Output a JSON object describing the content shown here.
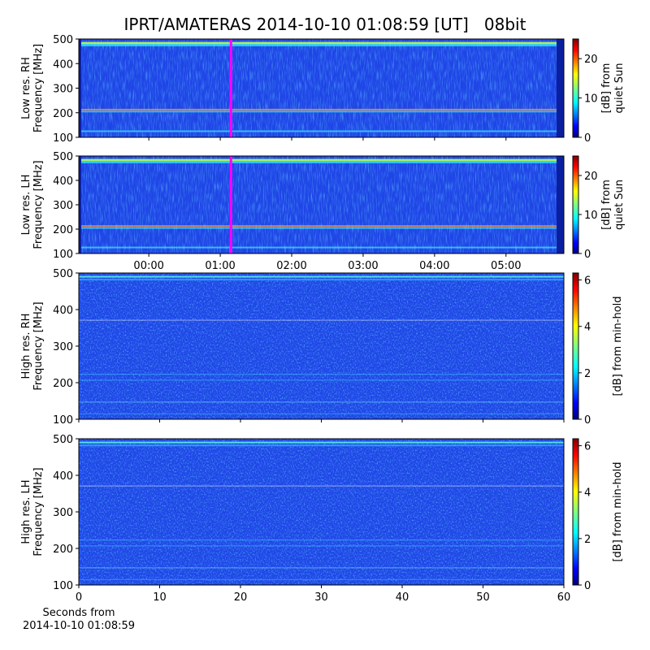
{
  "title": "IPRT/AMATERAS 2014-10-10 01:08:59 [UT]   08bit",
  "chart_data": [
    {
      "type": "heatmap",
      "ylabel": [
        "Low res. RH",
        "Frequency [MHz]"
      ],
      "ylim": [
        100,
        500
      ],
      "yticks": [
        100,
        200,
        300,
        400,
        500
      ],
      "xlim": [
        -0.98,
        5.81
      ],
      "xticks": [
        0,
        1,
        2,
        3,
        4,
        5
      ],
      "show_xticklabels": false,
      "marker_x": 1.15,
      "marker_color": "#ff00ff",
      "colorbar": {
        "label": [
          "[dB] from",
          "quiet Sun"
        ],
        "lim": [
          0,
          25
        ],
        "ticks": [
          0,
          10,
          20
        ]
      }
    },
    {
      "type": "heatmap",
      "ylabel": [
        "Low res. LH",
        "Frequency [MHz]"
      ],
      "ylim": [
        100,
        500
      ],
      "yticks": [
        100,
        200,
        300,
        400,
        500
      ],
      "xlim": [
        -0.98,
        5.81
      ],
      "xticks": [
        {
          "value": 0,
          "label": "00:00"
        },
        {
          "value": 1,
          "label": "01:00"
        },
        {
          "value": 2,
          "label": "02:00"
        },
        {
          "value": 3,
          "label": "03:00"
        },
        {
          "value": 4,
          "label": "04:00"
        },
        {
          "value": 5,
          "label": "05:00"
        }
      ],
      "show_xticklabels": true,
      "marker_x": 1.15,
      "marker_color": "#ff00ff",
      "colorbar": {
        "label": [
          "[dB] from",
          "quiet Sun"
        ],
        "lim": [
          0,
          25
        ],
        "ticks": [
          0,
          10,
          20
        ]
      }
    },
    {
      "type": "heatmap",
      "ylabel": [
        "High res. RH",
        "Frequency [MHz]"
      ],
      "ylim": [
        100,
        500
      ],
      "yticks": [
        100,
        200,
        300,
        400,
        500
      ],
      "xlim": [
        0,
        60
      ],
      "xticks": [
        0,
        10,
        20,
        30,
        40,
        50,
        60
      ],
      "show_xticklabels": false,
      "colorbar": {
        "label": [
          "[dB] from min-hold"
        ],
        "lim": [
          0,
          6.3
        ],
        "ticks": [
          0,
          2,
          4,
          6
        ]
      }
    },
    {
      "type": "heatmap",
      "ylabel": [
        "High res. LH",
        "Frequency [MHz]"
      ],
      "ylim": [
        100,
        500
      ],
      "yticks": [
        100,
        200,
        300,
        400,
        500
      ],
      "xlim": [
        0,
        60
      ],
      "xticks": [
        0,
        10,
        20,
        30,
        40,
        50,
        60
      ],
      "show_xticklabels": true,
      "xlabel": [
        "Seconds from",
        "2014-10-10 01:08:59"
      ],
      "colorbar": {
        "label": [
          "[dB] from min-hold"
        ],
        "lim": [
          0,
          6.3
        ],
        "ticks": [
          0,
          2,
          4,
          6
        ]
      }
    }
  ]
}
